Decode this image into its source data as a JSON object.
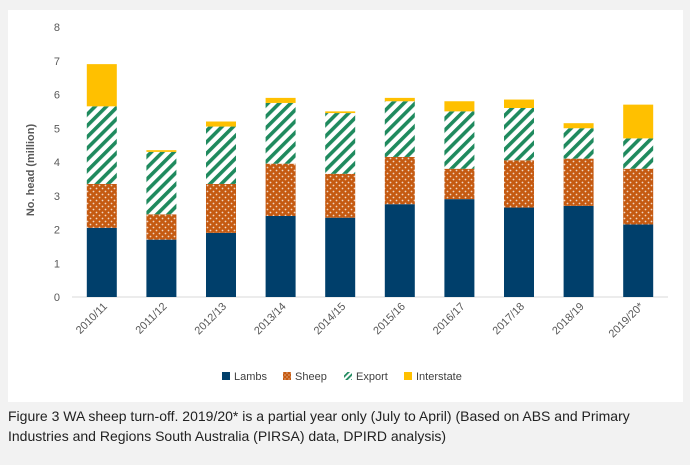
{
  "caption": "Figure 3 WA sheep turn-off. 2019/20* is a partial year only (July to April) (Based on ABS and Primary Industries and Regions South Australia (PIRSA) data, DPIRD analysis)",
  "colors": {
    "lambs": "#003f6b",
    "sheep": "#c55a11",
    "export": "#1f8a5e",
    "interstate": "#ffc000",
    "tick": "#595959"
  },
  "chart_data": {
    "type": "bar",
    "stacked": true,
    "categories": [
      "2010/11",
      "2011/12",
      "2012/13",
      "2013/14",
      "2014/15",
      "2015/16",
      "2016/17",
      "2017/18",
      "2018/19",
      "2019/20*"
    ],
    "series": [
      {
        "name": "Lambs",
        "values": [
          2.05,
          1.7,
          1.9,
          2.4,
          2.35,
          2.75,
          2.9,
          2.65,
          2.7,
          2.15
        ]
      },
      {
        "name": "Sheep",
        "values": [
          1.3,
          0.75,
          1.45,
          1.55,
          1.3,
          1.4,
          0.9,
          1.4,
          1.4,
          1.65
        ]
      },
      {
        "name": "Export",
        "values": [
          2.3,
          1.85,
          1.7,
          1.8,
          1.8,
          1.65,
          1.7,
          1.55,
          0.9,
          0.9
        ]
      },
      {
        "name": "Interstate",
        "values": [
          1.25,
          0.05,
          0.15,
          0.15,
          0.05,
          0.1,
          0.3,
          0.25,
          0.15,
          1.0
        ]
      }
    ],
    "ylabel": "No. head (million)",
    "ylim": [
      0,
      8
    ],
    "yticks": [
      "0",
      "1",
      "2",
      "3",
      "4",
      "5",
      "6",
      "7",
      "8"
    ],
    "legend_position": "bottom",
    "grid": false
  }
}
